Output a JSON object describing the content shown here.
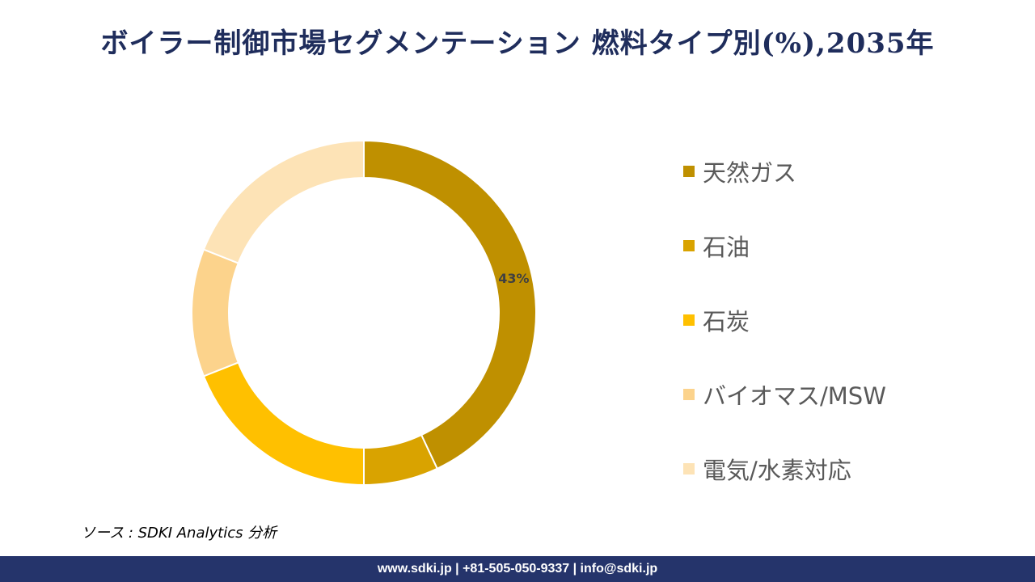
{
  "title": "ボイラー制御市場セグメンテーション 燃料タイプ別(%),2035年",
  "chart_data": {
    "type": "pie",
    "donut": true,
    "categories": [
      "天然ガス",
      "石油",
      "石炭",
      "バイオマス/MSW",
      "電気/水素対応"
    ],
    "values": [
      43,
      7,
      19,
      12,
      19
    ],
    "colors": [
      "#bf9000",
      "#d9a300",
      "#ffc000",
      "#fcd38c",
      "#fde3b6"
    ],
    "data_labels": [
      "43%",
      "",
      "",
      "",
      ""
    ],
    "legend_position": "right"
  },
  "source": "ソース : SDKI Analytics 分析",
  "footer": "www.sdki.jp | +81-505-050-9337 | info@sdki.jp"
}
